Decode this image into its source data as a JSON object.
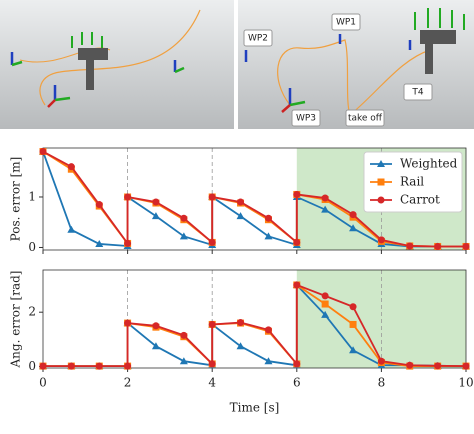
{
  "scenes": [
    {
      "labels": []
    },
    {
      "labels": [
        "WP1",
        "WP2",
        "WP3",
        "T4",
        "take off"
      ]
    }
  ],
  "chart_data": [
    {
      "type": "line",
      "ylabel": "Pos. error [m]",
      "xlim": [
        0,
        10
      ],
      "ylim": [
        -0.05,
        1.97
      ],
      "yticks": [
        0,
        1
      ],
      "xticks": [
        0,
        2,
        4,
        6,
        8,
        10
      ],
      "show_xtick_labels": false,
      "dashed_xlines": [
        2,
        4,
        8
      ],
      "shade": [
        6,
        10
      ],
      "shade_color": "#cfe8c9",
      "legend": "upper right",
      "series": [
        {
          "name": "Weighted",
          "color": "#1f77b4",
          "marker": "triangle",
          "x": [
            0,
            0.67,
            1.33,
            2,
            2,
            2.67,
            3.33,
            4,
            4,
            4.67,
            5.33,
            6,
            6,
            6.67,
            7.33,
            8,
            8.67,
            9.33,
            10
          ],
          "values": [
            1.9,
            0.35,
            0.07,
            0.03,
            1.0,
            0.62,
            0.22,
            0.05,
            1.0,
            0.62,
            0.22,
            0.05,
            1.0,
            0.75,
            0.38,
            0.07,
            0.02,
            0.02,
            0.02
          ]
        },
        {
          "name": "Rail",
          "color": "#ff7f0e",
          "marker": "square",
          "x": [
            0,
            0.67,
            1.33,
            2,
            2,
            2.67,
            3.33,
            4,
            4,
            4.67,
            5.33,
            6,
            6,
            6.67,
            7.33,
            8,
            8.67,
            9.33,
            10
          ],
          "values": [
            1.9,
            1.55,
            0.82,
            0.08,
            1.0,
            0.88,
            0.55,
            0.1,
            1.0,
            0.88,
            0.55,
            0.1,
            1.05,
            0.95,
            0.6,
            0.12,
            0.03,
            0.02,
            0.02
          ]
        },
        {
          "name": "Carrot",
          "color": "#d62728",
          "marker": "circle",
          "x": [
            0,
            0.67,
            1.33,
            2,
            2,
            2.67,
            3.33,
            4,
            4,
            4.67,
            5.33,
            6,
            6,
            6.67,
            7.33,
            8,
            8.67,
            9.33,
            10
          ],
          "values": [
            1.9,
            1.6,
            0.85,
            0.08,
            1.0,
            0.9,
            0.58,
            0.1,
            1.0,
            0.9,
            0.58,
            0.1,
            1.05,
            0.98,
            0.65,
            0.15,
            0.03,
            0.02,
            0.02
          ]
        }
      ]
    },
    {
      "type": "line",
      "ylabel": "Ang. error [rad]",
      "xlabel": "Time [s]",
      "xlim": [
        0,
        10
      ],
      "ylim": [
        -0.05,
        3.55
      ],
      "yticks": [
        0,
        2
      ],
      "xticks": [
        0,
        2,
        4,
        6,
        8,
        10
      ],
      "show_xtick_labels": true,
      "dashed_xlines": [
        2,
        4,
        8
      ],
      "shade": [
        6,
        10
      ],
      "shade_color": "#cfe8c9",
      "series": [
        {
          "name": "Weighted",
          "color": "#1f77b4",
          "marker": "triangle",
          "x": [
            0,
            0.67,
            1.33,
            2,
            2,
            2.67,
            3.33,
            4,
            4,
            4.67,
            5.33,
            6,
            6,
            6.67,
            7.33,
            8,
            8.67,
            9.33,
            10
          ],
          "values": [
            0.02,
            0.02,
            0.02,
            0.02,
            1.6,
            0.75,
            0.2,
            0.05,
            1.55,
            0.75,
            0.2,
            0.05,
            3.0,
            1.9,
            0.6,
            0.05,
            0.05,
            0.03,
            0.02
          ]
        },
        {
          "name": "Rail",
          "color": "#ff7f0e",
          "marker": "square",
          "x": [
            0,
            0.67,
            1.33,
            2,
            2,
            2.67,
            3.33,
            4,
            4,
            4.67,
            5.33,
            6,
            6,
            6.67,
            7.33,
            8,
            8.67,
            9.33,
            10
          ],
          "values": [
            0.02,
            0.02,
            0.02,
            0.02,
            1.6,
            1.45,
            1.1,
            0.1,
            1.55,
            1.6,
            1.3,
            0.1,
            3.0,
            2.3,
            1.55,
            0.15,
            0.02,
            0.02,
            0.02
          ]
        },
        {
          "name": "Carrot",
          "color": "#d62728",
          "marker": "circle",
          "x": [
            0,
            0.67,
            1.33,
            2,
            2,
            2.67,
            3.33,
            4,
            4,
            4.67,
            5.33,
            6,
            6,
            6.67,
            7.33,
            8,
            8.67,
            9.33,
            10
          ],
          "values": [
            0.02,
            0.02,
            0.02,
            0.02,
            1.6,
            1.5,
            1.15,
            0.1,
            1.55,
            1.62,
            1.35,
            0.1,
            3.0,
            2.6,
            2.2,
            0.2,
            0.05,
            0.03,
            0.02
          ]
        }
      ]
    }
  ]
}
